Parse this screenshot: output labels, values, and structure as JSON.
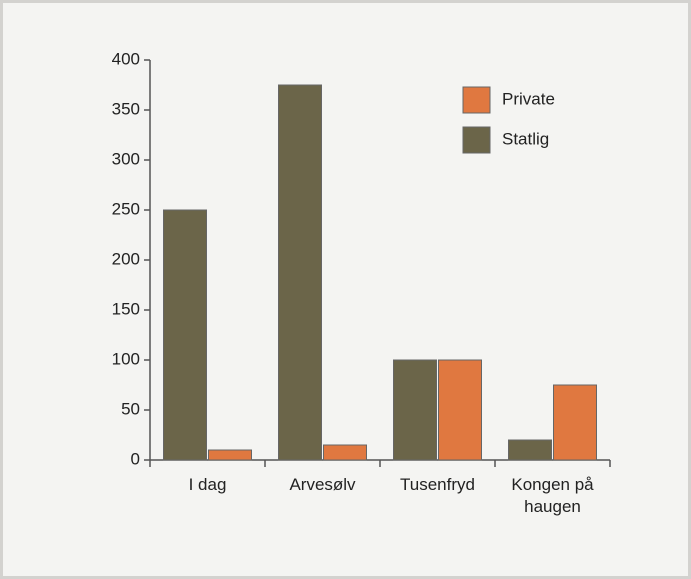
{
  "chart_data": {
    "type": "bar",
    "categories": [
      "I dag",
      "Arvesølv",
      "Tusenfryd",
      "Kongen på haugen"
    ],
    "series": [
      {
        "name": "Private",
        "color": "#e07840",
        "values": [
          10,
          15,
          100,
          75
        ]
      },
      {
        "name": "Statlig",
        "color": "#6b6549",
        "values": [
          250,
          375,
          100,
          20
        ]
      }
    ],
    "ylim": [
      0,
      400
    ],
    "yticks": [
      0,
      50,
      100,
      150,
      200,
      250,
      300,
      350,
      400
    ],
    "legend": "upper right"
  }
}
